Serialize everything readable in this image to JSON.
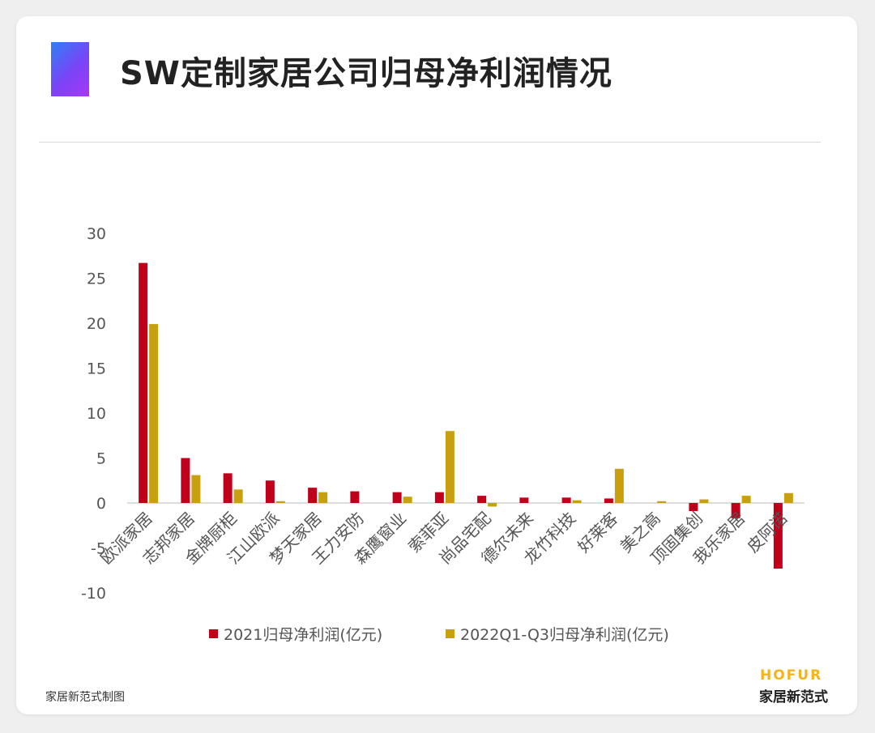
{
  "header": {
    "title": "SW定制家居公司归母净利润情况"
  },
  "footer": {
    "credit": "家居新范式制图",
    "brand_en": "HOFUR",
    "brand_cn": "家居新范式"
  },
  "colors": {
    "series_2021": "#c0001a",
    "series_2022": "#c8a00f",
    "accent_start": "#2f7ff5",
    "accent_end": "#a838f5"
  },
  "chart_data": {
    "type": "bar",
    "title": "",
    "xlabel": "",
    "ylabel": "",
    "ylim": [
      -10,
      30
    ],
    "yticks": [
      "30",
      "25",
      "20",
      "15",
      "10",
      "5",
      "0",
      "-5",
      "-10"
    ],
    "legend_position": "bottom",
    "grid": false,
    "categories": [
      "欧派家居",
      "志邦家居",
      "金牌厨柜",
      "江山欧派",
      "梦天家居",
      "王力安防",
      "森鹰窗业",
      "索菲亚",
      "尚品宅配",
      "德尔未来",
      "龙竹科技",
      "好莱客",
      "美之高",
      "顶固集创",
      "我乐家居",
      "皮阿诺"
    ],
    "series": [
      {
        "name": "2021归母净利润(亿元)",
        "values": [
          26.7,
          5.0,
          3.3,
          2.5,
          1.7,
          1.3,
          1.2,
          1.2,
          0.8,
          0.6,
          0.6,
          0.5,
          0.0,
          -0.9,
          -1.7,
          -7.3
        ]
      },
      {
        "name": "2022Q1-Q3归母净利润(亿元)",
        "values": [
          19.9,
          3.1,
          1.5,
          0.2,
          1.2,
          0.0,
          0.7,
          8.0,
          -0.4,
          0.0,
          0.3,
          3.8,
          0.2,
          0.4,
          0.8,
          1.1
        ]
      }
    ]
  }
}
